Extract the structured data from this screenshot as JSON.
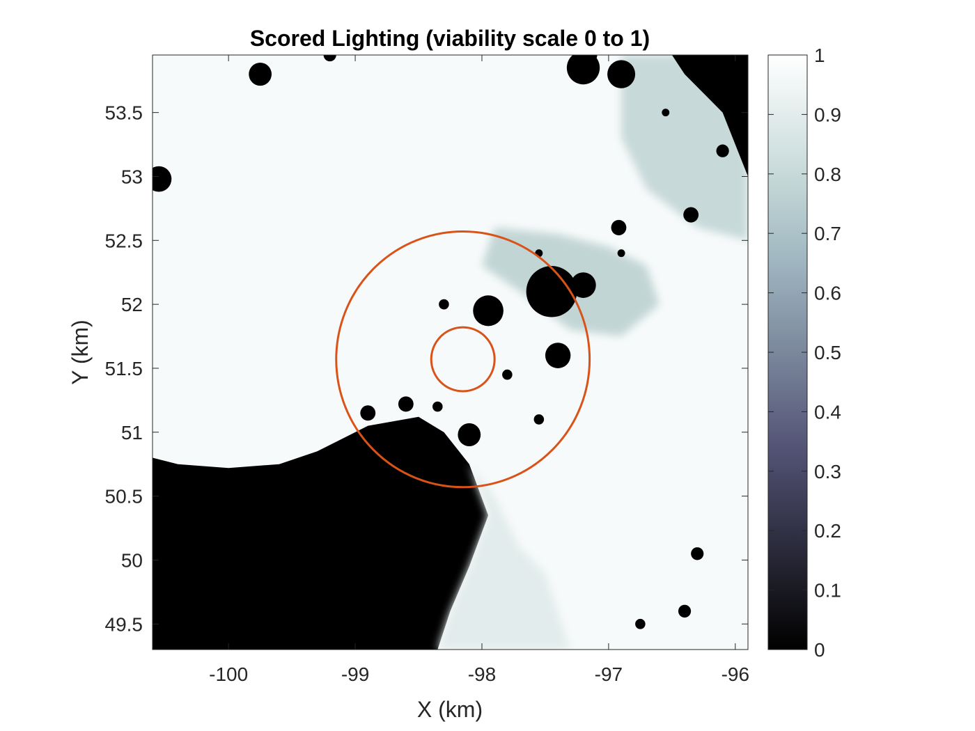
{
  "chart_data": {
    "type": "heatmap",
    "title": "Scored Lighting (viability scale 0 to 1)",
    "xlabel": "X (km)",
    "ylabel": "Y (km)",
    "xlim": [
      -100.6,
      -95.9
    ],
    "ylim": [
      49.3,
      53.95
    ],
    "x_ticks": [
      -100,
      -99,
      -98,
      -97,
      -96
    ],
    "x_tick_labels": [
      "-100",
      "-99",
      "-98",
      "-97",
      "-96"
    ],
    "y_ticks": [
      49.5,
      50,
      50.5,
      51,
      51.5,
      52,
      52.5,
      53,
      53.5
    ],
    "y_tick_labels": [
      "49.5",
      "50",
      "50.5",
      "51",
      "51.5",
      "52",
      "52.5",
      "53",
      "53.5"
    ],
    "colorbar": {
      "range": [
        0,
        1
      ],
      "ticks": [
        0,
        0.1,
        0.2,
        0.3,
        0.4,
        0.5,
        0.6,
        0.7,
        0.8,
        0.9,
        1
      ],
      "tick_labels": [
        "0",
        "0.1",
        "0.2",
        "0.3",
        "0.4",
        "0.5",
        "0.6",
        "0.7",
        "0.8",
        "0.9",
        "1"
      ],
      "colormap": "bone",
      "colors": [
        "#000000",
        "#1c1c26",
        "#37374e",
        "#525274",
        "#6d768f",
        "#8898a9",
        "#a3bac3",
        "#c1d5d5",
        "#e0eaea",
        "#ffffff"
      ]
    },
    "circles": [
      {
        "center_x": -98.15,
        "center_y": 51.57,
        "radius_km": 1.0,
        "color": "#d95319"
      },
      {
        "center_x": -98.15,
        "center_y": 51.57,
        "radius_km": 0.25,
        "color": "#d95319"
      }
    ],
    "regions": [
      {
        "description": "shadow",
        "value": 0.0,
        "polygon": [
          [
            -100.6,
            50.8
          ],
          [
            -100.4,
            50.75
          ],
          [
            -100.0,
            50.72
          ],
          [
            -99.6,
            50.75
          ],
          [
            -99.3,
            50.85
          ],
          [
            -98.9,
            51.05
          ],
          [
            -98.5,
            51.12
          ],
          [
            -98.3,
            51.0
          ],
          [
            -98.1,
            50.75
          ],
          [
            -97.95,
            50.35
          ],
          [
            -98.1,
            49.95
          ],
          [
            -98.25,
            49.6
          ],
          [
            -98.35,
            49.3
          ],
          [
            -100.6,
            49.3
          ]
        ]
      },
      {
        "description": "lower-lit",
        "value": 0.9,
        "polygon": [
          [
            -98.1,
            50.75
          ],
          [
            -97.9,
            50.5
          ],
          [
            -97.7,
            50.1
          ],
          [
            -97.5,
            49.9
          ],
          [
            -97.3,
            49.3
          ],
          [
            -98.35,
            49.3
          ],
          [
            -98.25,
            49.6
          ],
          [
            -98.1,
            49.95
          ],
          [
            -97.95,
            50.35
          ]
        ]
      },
      {
        "description": "gray-ridge",
        "value": 0.78,
        "polygon": [
          [
            -97.9,
            52.6
          ],
          [
            -97.4,
            52.55
          ],
          [
            -97.0,
            52.45
          ],
          [
            -96.7,
            52.3
          ],
          [
            -96.6,
            52.0
          ],
          [
            -96.9,
            51.75
          ],
          [
            -97.3,
            51.8
          ],
          [
            -97.7,
            52.1
          ],
          [
            -98.0,
            52.3
          ]
        ]
      },
      {
        "description": "gray-northeast",
        "value": 0.8,
        "polygon": [
          [
            -96.9,
            53.95
          ],
          [
            -95.9,
            53.95
          ],
          [
            -95.9,
            52.5
          ],
          [
            -96.3,
            52.6
          ],
          [
            -96.7,
            52.9
          ],
          [
            -96.9,
            53.3
          ]
        ]
      },
      {
        "description": "dark-northeast-corner",
        "value": 0.0,
        "polygon": [
          [
            -96.5,
            53.95
          ],
          [
            -95.9,
            53.95
          ],
          [
            -95.9,
            53.0
          ],
          [
            -96.1,
            53.5
          ],
          [
            -96.4,
            53.8
          ]
        ]
      }
    ],
    "craters": [
      {
        "x": -99.75,
        "y": 53.8,
        "r": 0.09
      },
      {
        "x": -97.2,
        "y": 53.85,
        "r": 0.13
      },
      {
        "x": -96.9,
        "y": 53.8,
        "r": 0.11
      },
      {
        "x": -100.55,
        "y": 52.98,
        "r": 0.1
      },
      {
        "x": -97.45,
        "y": 52.1,
        "r": 0.2
      },
      {
        "x": -97.2,
        "y": 52.15,
        "r": 0.1
      },
      {
        "x": -97.95,
        "y": 51.95,
        "r": 0.12
      },
      {
        "x": -97.4,
        "y": 51.6,
        "r": 0.1
      },
      {
        "x": -98.1,
        "y": 50.98,
        "r": 0.09
      },
      {
        "x": -98.9,
        "y": 51.15,
        "r": 0.06
      },
      {
        "x": -98.6,
        "y": 51.22,
        "r": 0.06
      },
      {
        "x": -96.92,
        "y": 52.6,
        "r": 0.06
      },
      {
        "x": -96.35,
        "y": 52.7,
        "r": 0.06
      },
      {
        "x": -96.3,
        "y": 50.05,
        "r": 0.05
      },
      {
        "x": -96.4,
        "y": 49.6,
        "r": 0.05
      },
      {
        "x": -96.75,
        "y": 49.5,
        "r": 0.04
      },
      {
        "x": -96.1,
        "y": 53.2,
        "r": 0.05
      },
      {
        "x": -97.55,
        "y": 51.1,
        "r": 0.04
      },
      {
        "x": -98.35,
        "y": 51.2,
        "r": 0.04
      },
      {
        "x": -99.2,
        "y": 53.95,
        "r": 0.05
      },
      {
        "x": -97.15,
        "y": 53.95,
        "r": 0.06
      },
      {
        "x": -96.55,
        "y": 53.5,
        "r": 0.03
      },
      {
        "x": -96.9,
        "y": 52.4,
        "r": 0.03
      },
      {
        "x": -97.55,
        "y": 52.4,
        "r": 0.03
      },
      {
        "x": -97.8,
        "y": 51.45,
        "r": 0.04
      },
      {
        "x": -98.3,
        "y": 52.0,
        "r": 0.04
      }
    ]
  }
}
